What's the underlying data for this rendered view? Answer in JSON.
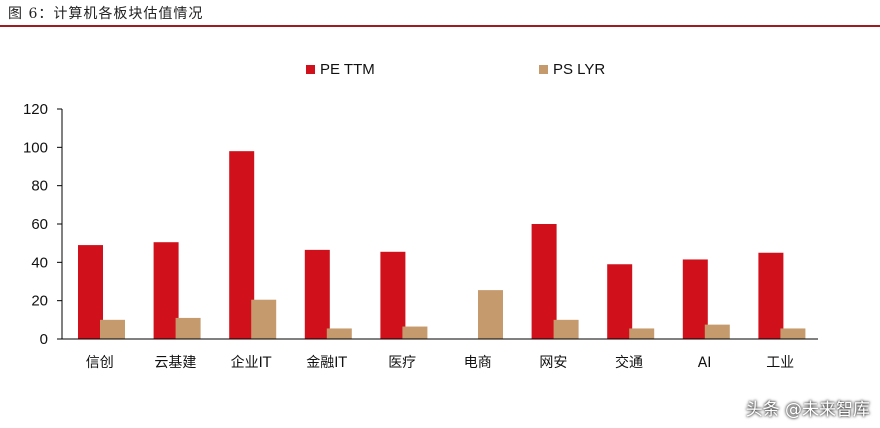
{
  "figure_title": "图 6：计算机各板块估值情况",
  "watermark": "头条 @未来智库",
  "colors": {
    "pe": "#d0111b",
    "ps": "#c59a6d",
    "axis": "#000000",
    "title_rule": "#9e1c20"
  },
  "chart_data": {
    "type": "bar",
    "title": "",
    "xlabel": "",
    "ylabel": "",
    "ylim": [
      0,
      120
    ],
    "yticks": [
      0,
      20,
      40,
      60,
      80,
      100,
      120
    ],
    "grid": false,
    "legend_position": "top",
    "categories": [
      "信创",
      "云基建",
      "企业IT",
      "金融IT",
      "医疗",
      "电商",
      "网安",
      "交通",
      "AI",
      "工业"
    ],
    "series": [
      {
        "name": "PE TTM",
        "values": [
          49,
          50.5,
          98,
          46.5,
          45.5,
          null,
          60,
          39,
          41.5,
          45
        ]
      },
      {
        "name": "PS LYR",
        "values": [
          10,
          11,
          20.5,
          5.5,
          6.5,
          25.5,
          10,
          5.5,
          7.5,
          5.5
        ]
      }
    ]
  }
}
